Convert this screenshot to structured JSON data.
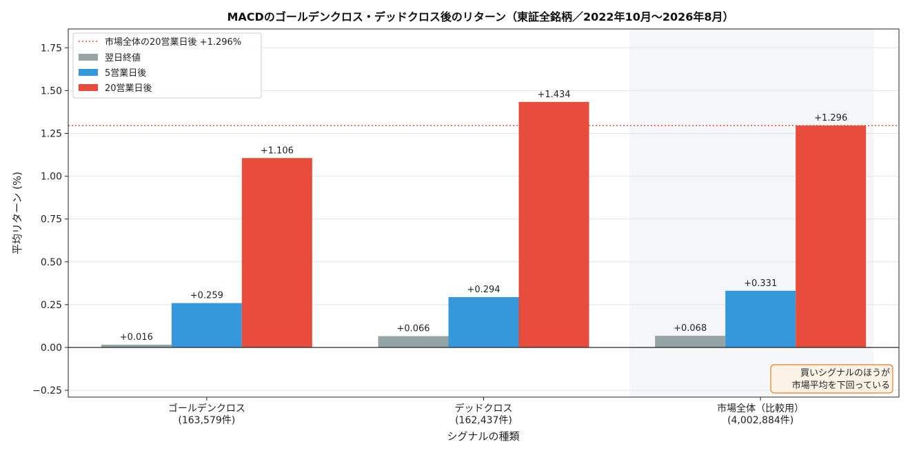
{
  "chart_data": {
    "type": "bar",
    "title": "MACDのゴールデンクロス・デッドクロス後のリターン（東証全銘柄／2022年10月〜2026年8月）",
    "xlabel": "シグナルの種類",
    "ylabel": "平均リターン (%)",
    "ylim": [
      -0.29,
      1.86
    ],
    "yticks": [
      "−0.25",
      "0.00",
      "0.25",
      "0.50",
      "0.75",
      "1.00",
      "1.25",
      "1.50",
      "1.75"
    ],
    "ytick_values": [
      -0.25,
      0,
      0.25,
      0.5,
      0.75,
      1.0,
      1.25,
      1.5,
      1.75
    ],
    "grid": "horizontal",
    "legend_position": "top-left",
    "categories": [
      {
        "line1": "ゴールデンクロス",
        "line2": "(163,579件)"
      },
      {
        "line1": "デッドクロス",
        "line2": "(162,437件)"
      },
      {
        "line1": "市場全体（比較用）",
        "line2": "(4,002,884件)"
      }
    ],
    "highlight_category": 2,
    "series": [
      {
        "name": "翌日終値",
        "color": "#95a5a6",
        "values": [
          0.016,
          0.066,
          0.068
        ],
        "labels": [
          "+0.016",
          "+0.066",
          "+0.068"
        ]
      },
      {
        "name": "5営業日後",
        "color": "#3498db",
        "values": [
          0.259,
          0.294,
          0.331
        ],
        "labels": [
          "+0.259",
          "+0.294",
          "+0.331"
        ]
      },
      {
        "name": "20営業日後",
        "color": "#e74c3c",
        "values": [
          1.106,
          1.434,
          1.296
        ],
        "labels": [
          "+1.106",
          "+1.434",
          "+1.296"
        ]
      }
    ],
    "reference_line": {
      "label": "市場全体の20営業日後 +1.296%",
      "value": 1.296,
      "color": "#e74c3c",
      "style": "dotted"
    },
    "annotation": {
      "lines": [
        "買いシグナルのほうが",
        "市場平均を下回っている"
      ],
      "position": "bottom-right",
      "border_color": "#e67e22",
      "fill_color": "#fdf2e6"
    }
  }
}
